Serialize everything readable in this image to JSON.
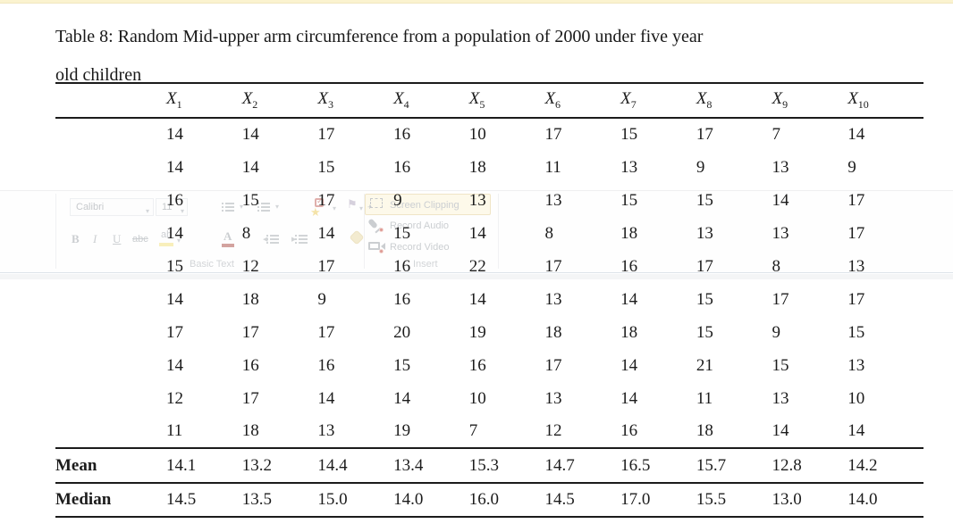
{
  "caption": {
    "line1": "Table 8: Random Mid-upper arm circumference from a population of 2000 under five year",
    "line2": "old children"
  },
  "table": {
    "header_symbol": "X",
    "header_subscripts": [
      "1",
      "2",
      "3",
      "4",
      "5",
      "6",
      "7",
      "8",
      "9",
      "10"
    ],
    "rows": [
      [
        "14",
        "14",
        "17",
        "16",
        "10",
        "17",
        "15",
        "17",
        "7",
        "14"
      ],
      [
        "14",
        "14",
        "15",
        "16",
        "18",
        "11",
        "13",
        "9",
        "13",
        "9"
      ],
      [
        "16",
        "15",
        "17",
        "9",
        "13",
        "13",
        "15",
        "15",
        "14",
        "17"
      ],
      [
        "14",
        "8",
        "14",
        "15",
        "14",
        "8",
        "18",
        "13",
        "13",
        "17"
      ],
      [
        "15",
        "12",
        "17",
        "16",
        "22",
        "17",
        "16",
        "17",
        "8",
        "13"
      ],
      [
        "14",
        "18",
        "9",
        "16",
        "14",
        "13",
        "14",
        "15",
        "17",
        "17"
      ],
      [
        "17",
        "17",
        "17",
        "20",
        "19",
        "18",
        "18",
        "15",
        "9",
        "15"
      ],
      [
        "14",
        "16",
        "16",
        "15",
        "16",
        "17",
        "14",
        "21",
        "15",
        "13"
      ],
      [
        "12",
        "17",
        "14",
        "14",
        "10",
        "13",
        "14",
        "11",
        "13",
        "10"
      ],
      [
        "11",
        "18",
        "13",
        "19",
        "7",
        "12",
        "16",
        "18",
        "14",
        "14"
      ]
    ],
    "summary_rows": [
      {
        "label": "Mean",
        "values": [
          "14.1",
          "13.2",
          "14.4",
          "13.4",
          "15.3",
          "14.7",
          "16.5",
          "15.7",
          "12.8",
          "14.2"
        ]
      },
      {
        "label": "Median",
        "values": [
          "14.5",
          "13.5",
          "15.0",
          "14.0",
          "16.0",
          "14.5",
          "17.0",
          "15.5",
          "13.0",
          "14.0"
        ]
      }
    ]
  },
  "ghost_toolbar": {
    "font_name": "Calibri",
    "font_size": "11",
    "bold": "B",
    "italic": "I",
    "underline": "U",
    "strikethrough": "abc",
    "highlight": "ab",
    "font_color": "A",
    "group_basic_text": "Basic Text",
    "screen_clipping": "Screen Clipping",
    "record_audio": "Record Audio",
    "record_video": "Record Video",
    "group_insert": "Insert"
  },
  "colors": {
    "top_strip": "#fbf3cf",
    "ghost_hover_fill": "#fdf5d8",
    "ghost_hover_border": "#e3cd90",
    "record_dot": "#c0392b",
    "tag_star": "#ecc956",
    "table_rule": "#1b1b1b"
  }
}
